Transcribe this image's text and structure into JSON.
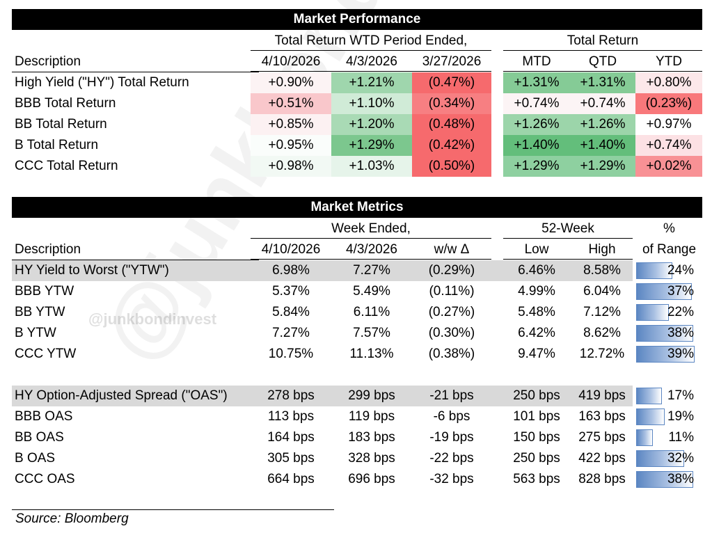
{
  "performance": {
    "title": "Market Performance",
    "group_wtd": "Total Return WTD Period Ended,",
    "group_total": "Total Return",
    "headers": [
      "Description",
      "4/10/2026",
      "4/3/2026",
      "3/27/2026",
      "MTD",
      "QTD",
      "YTD"
    ],
    "rows": [
      {
        "desc": "High Yield (\"HY\") Total Return",
        "cells": [
          "+0.90%",
          "+1.21%",
          "(0.47%)",
          "+1.31%",
          "+1.31%",
          "+0.80%"
        ],
        "colors": [
          "#fcf3f4",
          "#9fd6ad",
          "#f66a6d",
          "#85cb96",
          "#85cb96",
          "#fce8ea"
        ]
      },
      {
        "desc": "BBB Total Return",
        "cells": [
          "+0.51%",
          "+1.10%",
          "(0.34%)",
          "+0.74%",
          "+0.74%",
          "(0.23%)"
        ],
        "colors": [
          "#f9c7cb",
          "#d0ebd7",
          "#f77f82",
          "#fcf4f5",
          "#fcf4f5",
          "#f8787b"
        ]
      },
      {
        "desc": "BB Total Return",
        "cells": [
          "+0.85%",
          "+1.20%",
          "(0.48%)",
          "+1.26%",
          "+1.26%",
          "+0.97%"
        ],
        "colors": [
          "#fcf1f2",
          "#a9dab5",
          "#f66a6d",
          "#9cd5aa",
          "#9cd5aa",
          "#ffffff"
        ]
      },
      {
        "desc": "B Total Return",
        "cells": [
          "+0.95%",
          "+1.29%",
          "(0.42%)",
          "+1.40%",
          "+1.40%",
          "+0.74%"
        ],
        "colors": [
          "#fafdfb",
          "#7cc78e",
          "#f66a6d",
          "#63be7b",
          "#63be7b",
          "#fce1e4"
        ]
      },
      {
        "desc": "CCC Total Return",
        "cells": [
          "+0.98%",
          "+1.03%",
          "(0.50%)",
          "+1.29%",
          "+1.29%",
          "+0.02%"
        ],
        "colors": [
          "#f2f9f4",
          "#e6f4ea",
          "#f66a6d",
          "#8ed0a0",
          "#8ed0a0",
          "#f89195"
        ]
      }
    ]
  },
  "metrics": {
    "title": "Market Metrics",
    "group_week": "Week Ended,",
    "group_52": "52-Week",
    "group_pct": "%",
    "headers": [
      "Description",
      "4/10/2026",
      "4/3/2026",
      "w/w Δ",
      "Low",
      "High",
      "of Range"
    ],
    "ytw_rows": [
      {
        "desc": "HY Yield to Worst (\"YTW\")",
        "cells": [
          "6.98%",
          "7.27%",
          "(0.29%)",
          "6.46%",
          "8.58%"
        ],
        "pct_label": "24%",
        "pct": 0.24,
        "highlight": true
      },
      {
        "desc": "BBB YTW",
        "cells": [
          "5.37%",
          "5.49%",
          "(0.11%)",
          "4.99%",
          "6.04%"
        ],
        "pct_label": "37%",
        "pct": 0.37,
        "highlight": false
      },
      {
        "desc": "BB YTW",
        "cells": [
          "5.84%",
          "6.11%",
          "(0.27%)",
          "5.48%",
          "7.12%"
        ],
        "pct_label": "22%",
        "pct": 0.22,
        "highlight": false
      },
      {
        "desc": "B YTW",
        "cells": [
          "7.27%",
          "7.57%",
          "(0.30%)",
          "6.42%",
          "8.62%"
        ],
        "pct_label": "38%",
        "pct": 0.38,
        "highlight": false
      },
      {
        "desc": "CCC YTW",
        "cells": [
          "10.75%",
          "11.13%",
          "(0.38%)",
          "9.47%",
          "12.72%"
        ],
        "pct_label": "39%",
        "pct": 0.39,
        "highlight": false
      }
    ],
    "oas_rows": [
      {
        "desc": "HY Option-Adjusted Spread (\"OAS\")",
        "cells": [
          "278 bps",
          "299 bps",
          "-21 bps",
          "250 bps",
          "419 bps"
        ],
        "pct_label": "17%",
        "pct": 0.17,
        "highlight": true
      },
      {
        "desc": "BBB OAS",
        "cells": [
          "113 bps",
          "119 bps",
          "-6 bps",
          "101 bps",
          "163 bps"
        ],
        "pct_label": "19%",
        "pct": 0.19,
        "highlight": false
      },
      {
        "desc": "BB OAS",
        "cells": [
          "164 bps",
          "183 bps",
          "-19 bps",
          "150 bps",
          "275 bps"
        ],
        "pct_label": "11%",
        "pct": 0.11,
        "highlight": false
      },
      {
        "desc": "B OAS",
        "cells": [
          "305 bps",
          "328 bps",
          "-22 bps",
          "250 bps",
          "422 bps"
        ],
        "pct_label": "32%",
        "pct": 0.32,
        "highlight": false
      },
      {
        "desc": "CCC OAS",
        "cells": [
          "664 bps",
          "696 bps",
          "-32 bps",
          "563 bps",
          "828 bps"
        ],
        "pct_label": "38%",
        "pct": 0.38,
        "highlight": false
      }
    ]
  },
  "watermark": "@junkbondinvest",
  "handle": "@junkbondinvest",
  "source": "Source: Bloomberg"
}
